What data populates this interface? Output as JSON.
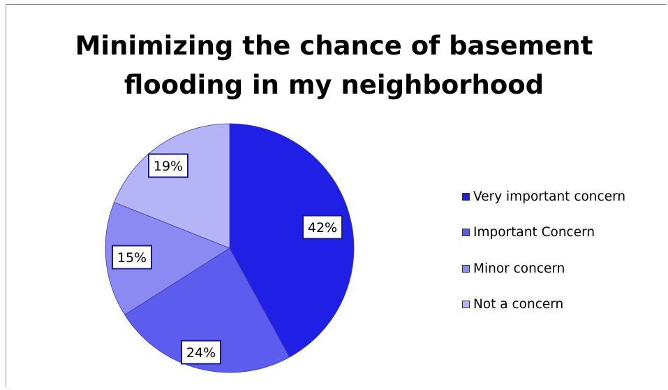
{
  "chart_data": {
    "type": "pie",
    "title_lines": [
      "Minimizing the chance of basement",
      "flooding in my neighborhood"
    ],
    "slices": [
      {
        "label": "Very important concern",
        "value": 42,
        "display": "42%",
        "color": "#1f1fe6"
      },
      {
        "label": "Important Concern",
        "value": 24,
        "display": "24%",
        "color": "#5c5cee"
      },
      {
        "label": "Minor concern",
        "value": 15,
        "display": "15%",
        "color": "#8a8af2"
      },
      {
        "label": "Not a concern",
        "value": 19,
        "display": "19%",
        "color": "#b4b4f7"
      }
    ],
    "start_angle": "12 o'clock",
    "direction": "clockwise",
    "legend_position": "right"
  }
}
